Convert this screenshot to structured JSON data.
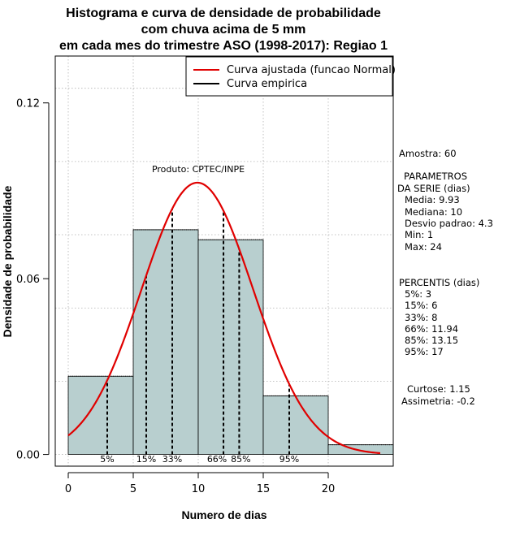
{
  "chart_data": {
    "type": "histogram",
    "title_lines": [
      "Histograma e curva de densidade de probabilidade",
      "com chuva acima de 5 mm",
      "em cada mes do trimestre ASO (1998-2017): Regiao 1"
    ],
    "xlabel": "Numero de dias",
    "ylabel": "Densidade de probabilidade",
    "xlim": [
      -1,
      25
    ],
    "ylim": [
      -0.004,
      0.136
    ],
    "x_ticks": [
      0,
      5,
      10,
      15,
      20
    ],
    "y_ticks": [
      0.0,
      0.06,
      0.12
    ],
    "y_tick_labels": [
      "0.00",
      "0.06",
      "0.12"
    ],
    "bins": [
      {
        "from": 0,
        "to": 5,
        "density": 0.0267
      },
      {
        "from": 5,
        "to": 10,
        "density": 0.0767
      },
      {
        "from": 10,
        "to": 15,
        "density": 0.0733
      },
      {
        "from": 15,
        "to": 20,
        "density": 0.02
      },
      {
        "from": 20,
        "to": 25,
        "density": 0.0033
      }
    ],
    "normal_fit": {
      "mean": 9.93,
      "sd": 4.3,
      "x_range": [
        0,
        24
      ]
    },
    "percentile_lines": [
      {
        "label": "5%",
        "x": 3
      },
      {
        "label": "15%",
        "x": 6
      },
      {
        "label": "33%",
        "x": 8
      },
      {
        "label": "66%",
        "x": 11.94
      },
      {
        "label": "85%",
        "x": 13.15
      },
      {
        "label": "95%",
        "x": 17
      }
    ],
    "credit": "Produto: CPTEC/INPE",
    "legend": [
      {
        "label": "Curva ajustada (funcao Normal)",
        "color": "#e00000"
      },
      {
        "label": "Curva empirica",
        "color": "#000000"
      }
    ],
    "legend_position": "top-right",
    "grid": true
  },
  "stats_panel": {
    "amostra": "Amostra: 60",
    "param_title_1": "PARAMETROS",
    "param_title_2": "DA SERIE (dias)",
    "params": [
      "Media: 9.93",
      "Mediana: 10",
      "Desvio padrao: 4.3",
      "Min: 1",
      "Max: 24"
    ],
    "perc_title": "PERCENTIS (dias)",
    "percentis": [
      "5%: 3",
      "15%: 6",
      "33%: 8",
      "66%: 11.94",
      "85%: 13.15",
      "95%: 17"
    ],
    "curtose": "Curtose: 1.15",
    "assimetria": "Assimetria: -0.2"
  },
  "colors": {
    "bar_fill": "#b8cfcf",
    "curve": "#e00000",
    "grid": "#b0b0b0"
  }
}
